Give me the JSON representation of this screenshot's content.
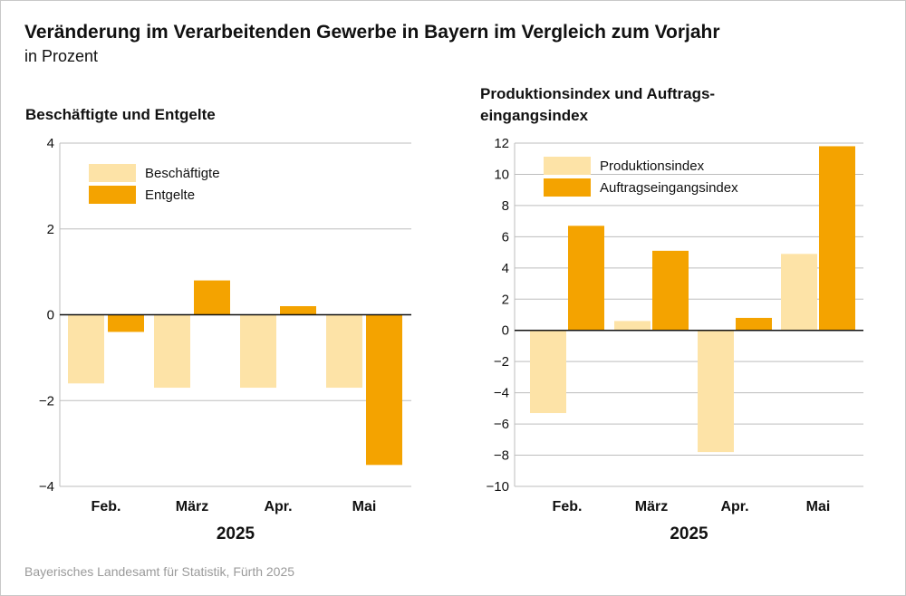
{
  "title": "Veränderung im Verarbeitenden Gewerbe in Bayern im Vergleich zum Vorjahr",
  "subtitle": "in Prozent",
  "source": "Bayerisches Landesamt für Statistik, Fürth 2025",
  "colors": {
    "light": "#fde3a7",
    "dark": "#f4a300",
    "grid": "#bdbdbd",
    "zero": "#111111"
  },
  "chart_data": [
    {
      "type": "bar",
      "title": "Beschäftigte und Entgelte",
      "categories": [
        "Feb.",
        "März",
        "Apr.",
        "Mai"
      ],
      "xlabel": "2025",
      "ylim": [
        -4,
        4
      ],
      "yticks": [
        "4",
        "2",
        "0",
        "−2",
        "−4"
      ],
      "grid": true,
      "legend": "top-left",
      "series": [
        {
          "name": "Beschäftigte",
          "values": [
            -1.6,
            -1.7,
            -1.7,
            -1.7
          ]
        },
        {
          "name": "Entgelte",
          "values": [
            -0.4,
            0.8,
            0.2,
            -3.5
          ]
        }
      ]
    },
    {
      "type": "bar",
      "title": "Produktionsindex und Auftrags-\neingangsindex",
      "categories": [
        "Feb.",
        "März",
        "Apr.",
        "Mai"
      ],
      "xlabel": "2025",
      "ylim": [
        -10,
        12
      ],
      "yticks": [
        "12",
        "10",
        "8",
        "6",
        "4",
        "2",
        "0",
        "−2",
        "−4",
        "−6",
        "−8",
        "−10"
      ],
      "grid": true,
      "legend": "top-left",
      "series": [
        {
          "name": "Produktionsindex",
          "values": [
            -5.3,
            0.6,
            -7.8,
            4.9
          ]
        },
        {
          "name": "Auftragseingangsindex",
          "values": [
            6.7,
            5.1,
            0.8,
            11.8
          ]
        }
      ]
    }
  ]
}
